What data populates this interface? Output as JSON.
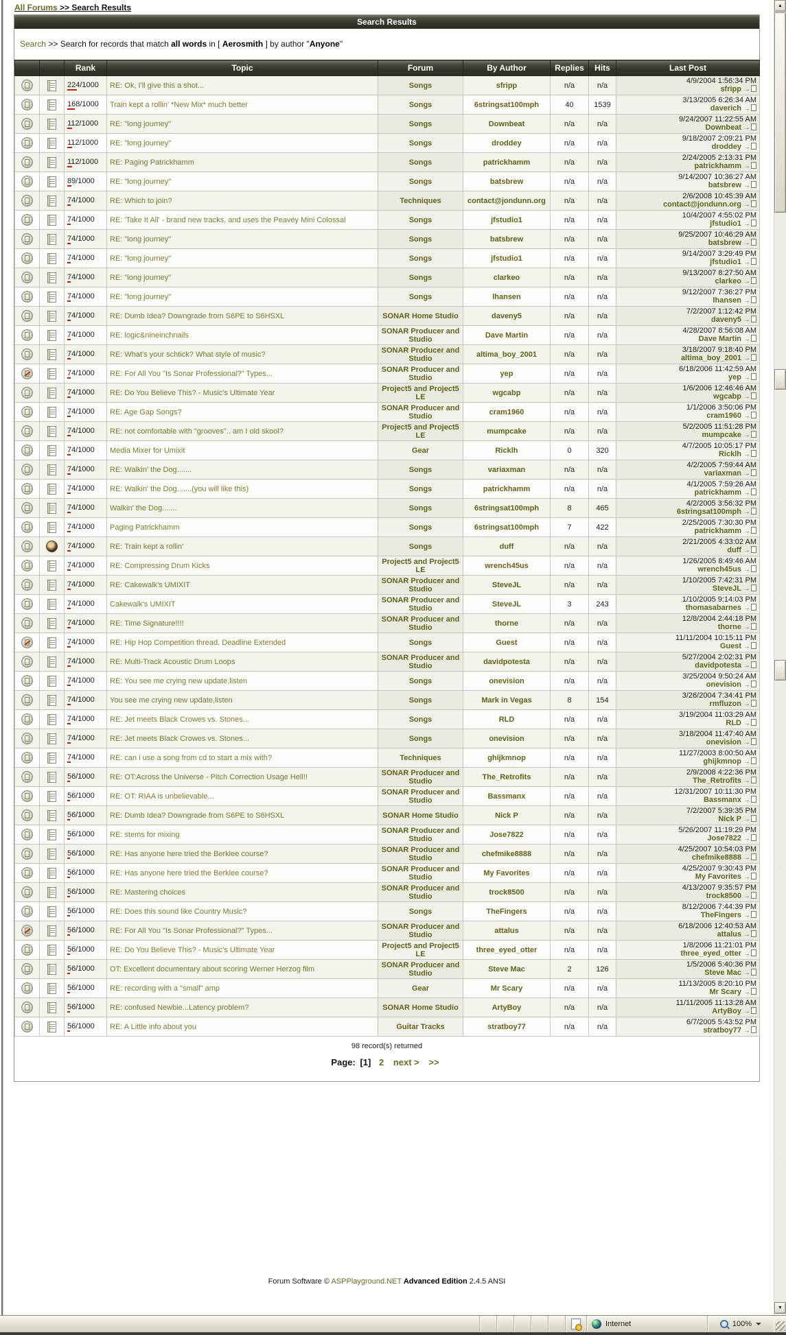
{
  "colors": {
    "accent_olive": "#6b6b21",
    "link_olive": "#7b7b2a",
    "header_bar_bg": "#34342b",
    "rank_bar_red": "#cc1d00",
    "row_alt_bg": "#f3f3ec",
    "status_bar_bg": "#e5e2d4"
  },
  "breadcrumb": {
    "link": "All Forums",
    "rest": " >> Search Results"
  },
  "header": {
    "title": "Search Results"
  },
  "search_summary": {
    "link": "Search",
    "text1": " >> Search for records that match ",
    "bold1": "all words",
    "text2": " in [ ",
    "bold2": "Aerosmith",
    "text3": " ] by author \"",
    "bold3": "Anyone",
    "text4": "\""
  },
  "table": {
    "headers": {
      "rank": "Rank",
      "topic": "Topic",
      "forum": "Forum",
      "by_author": "By Author",
      "replies": "Replies",
      "hits": "Hits",
      "last_post": "Last Post"
    },
    "rows": [
      {
        "icon1": "topic",
        "icon2": "post",
        "rank": "224/1000",
        "topic": "RE: Ok, I'll give this a shot...",
        "forum": "Songs",
        "author": "sfripp",
        "replies": "n/a",
        "hits": "n/a",
        "last_date": "4/9/2004 1:56:34 PM",
        "last_by": "sfripp"
      },
      {
        "icon1": "topic",
        "icon2": "post",
        "rank": "168/1000",
        "topic": "Train kept a rollin' *New Mix* much better",
        "forum": "Songs",
        "author": "6stringsat100mph",
        "replies": "40",
        "hits": "1539",
        "last_date": "3/13/2005 6:26:34 AM",
        "last_by": "daverich"
      },
      {
        "icon1": "topic",
        "icon2": "post",
        "rank": "112/1000",
        "topic": "RE: \"long journey\"",
        "forum": "Songs",
        "author": "Downbeat",
        "replies": "n/a",
        "hits": "n/a",
        "last_date": "9/24/2007 11:22:55 AM",
        "last_by": "Downbeat"
      },
      {
        "icon1": "topic",
        "icon2": "post",
        "rank": "112/1000",
        "topic": "RE: \"long journey\"",
        "forum": "Songs",
        "author": "droddey",
        "replies": "n/a",
        "hits": "n/a",
        "last_date": "9/18/2007 2:09:21 PM",
        "last_by": "droddey"
      },
      {
        "icon1": "topic",
        "icon2": "post",
        "rank": "112/1000",
        "topic": "RE: Paging Patrickhamm",
        "forum": "Songs",
        "author": "patrickhamm",
        "replies": "n/a",
        "hits": "n/a",
        "last_date": "2/24/2005 2:13:31 PM",
        "last_by": "patrickhamm"
      },
      {
        "icon1": "topic",
        "icon2": "post",
        "rank": "89/1000",
        "topic": "RE: \"long journey\"",
        "forum": "Songs",
        "author": "batsbrew",
        "replies": "n/a",
        "hits": "n/a",
        "last_date": "9/14/2007 10:36:27 AM",
        "last_by": "batsbrew"
      },
      {
        "icon1": "topic",
        "icon2": "post",
        "rank": "74/1000",
        "topic": "RE: Which to join?",
        "forum": "Techniques",
        "author": "contact@jondunn.org",
        "replies": "n/a",
        "hits": "n/a",
        "last_date": "2/6/2008 10:45:39 AM",
        "last_by": "contact@jondunn.org"
      },
      {
        "icon1": "topic",
        "icon2": "post",
        "rank": "74/1000",
        "topic": "RE: 'Take It All' - brand new tracks, and uses the Peavey Mini Colossal",
        "forum": "Songs",
        "author": "jfstudio1",
        "replies": "n/a",
        "hits": "n/a",
        "last_date": "10/4/2007 4:55:02 PM",
        "last_by": "jfstudio1"
      },
      {
        "icon1": "topic",
        "icon2": "post",
        "rank": "74/1000",
        "topic": "RE: \"long journey\"",
        "forum": "Songs",
        "author": "batsbrew",
        "replies": "n/a",
        "hits": "n/a",
        "last_date": "9/25/2007 10:46:29 AM",
        "last_by": "batsbrew"
      },
      {
        "icon1": "topic",
        "icon2": "post",
        "rank": "74/1000",
        "topic": "RE: \"long journey\"",
        "forum": "Songs",
        "author": "jfstudio1",
        "replies": "n/a",
        "hits": "n/a",
        "last_date": "9/14/2007 3:29:49 PM",
        "last_by": "jfstudio1"
      },
      {
        "icon1": "topic",
        "icon2": "post",
        "rank": "74/1000",
        "topic": "RE: \"long journey\"",
        "forum": "Songs",
        "author": "clarkeo",
        "replies": "n/a",
        "hits": "n/a",
        "last_date": "9/13/2007 8:27:50 AM",
        "last_by": "clarkeo"
      },
      {
        "icon1": "topic",
        "icon2": "post",
        "rank": "74/1000",
        "topic": "RE: \"long journey\"",
        "forum": "Songs",
        "author": "lhansen",
        "replies": "n/a",
        "hits": "n/a",
        "last_date": "9/12/2007 7:36:27 PM",
        "last_by": "lhansen"
      },
      {
        "icon1": "topic",
        "icon2": "post",
        "rank": "74/1000",
        "topic": "RE: Dumb Idea? Downgrade from S6PE to S6HSXL",
        "forum": "SONAR Home Studio",
        "author": "daveny5",
        "replies": "n/a",
        "hits": "n/a",
        "last_date": "7/2/2007 1:12:42 PM",
        "last_by": "daveny5"
      },
      {
        "icon1": "topic",
        "icon2": "post",
        "rank": "74/1000",
        "topic": "RE: logic&nineinchnails",
        "forum": "SONAR Producer and Studio",
        "author": "Dave Martin",
        "replies": "n/a",
        "hits": "n/a",
        "last_date": "4/28/2007 8:56:08 AM",
        "last_by": "Dave Martin"
      },
      {
        "icon1": "topic",
        "icon2": "post",
        "rank": "74/1000",
        "topic": "RE: What's your schtick? What style of music?",
        "forum": "SONAR Producer and Studio",
        "author": "altima_boy_2001",
        "replies": "n/a",
        "hits": "n/a",
        "last_date": "3/18/2007 9:18:40 PM",
        "last_by": "altima_boy_2001"
      },
      {
        "icon1": "locked",
        "icon2": "post",
        "rank": "74/1000",
        "topic": "RE: For All You \"Is Sonar Professional?\" Types...",
        "forum": "SONAR Producer and Studio",
        "author": "yep",
        "replies": "n/a",
        "hits": "n/a",
        "last_date": "6/18/2006 11:42:59 AM",
        "last_by": "yep"
      },
      {
        "icon1": "topic",
        "icon2": "post",
        "rank": "74/1000",
        "topic": "RE: Do You Believe This? - Music's Ultimate Year",
        "forum": "Project5 and Project5 LE",
        "author": "wgcabp",
        "replies": "n/a",
        "hits": "n/a",
        "last_date": "1/6/2006 12:46:46 AM",
        "last_by": "wgcabp"
      },
      {
        "icon1": "topic",
        "icon2": "post",
        "rank": "74/1000",
        "topic": "RE: Age Gap Songs?",
        "forum": "SONAR Producer and Studio",
        "author": "cram1960",
        "replies": "n/a",
        "hits": "n/a",
        "last_date": "1/1/2006 3:50:06 PM",
        "last_by": "cram1960"
      },
      {
        "icon1": "topic",
        "icon2": "post",
        "rank": "74/1000",
        "topic": "RE: not comfortable with \"grooves\".. am I old skool?",
        "forum": "Project5 and Project5 LE",
        "author": "mumpcake",
        "replies": "n/a",
        "hits": "n/a",
        "last_date": "5/2/2005 11:51:28 PM",
        "last_by": "mumpcake"
      },
      {
        "icon1": "topic",
        "icon2": "post",
        "rank": "74/1000",
        "topic": "Media Mixer for Umixit",
        "forum": "Gear",
        "author": "Ricklh",
        "replies": "0",
        "hits": "320",
        "last_date": "4/7/2005 10:05:17 PM",
        "last_by": "Ricklh"
      },
      {
        "icon1": "topic",
        "icon2": "post",
        "rank": "74/1000",
        "topic": "RE: Walkin' the Dog.......",
        "forum": "Songs",
        "author": "variaxman",
        "replies": "n/a",
        "hits": "n/a",
        "last_date": "4/2/2005 7:59:44 AM",
        "last_by": "variaxman"
      },
      {
        "icon1": "topic",
        "icon2": "post",
        "rank": "74/1000",
        "topic": "RE: Walkin' the Dog.......(you will like this)",
        "forum": "Songs",
        "author": "patrickhamm",
        "replies": "n/a",
        "hits": "n/a",
        "last_date": "4/1/2005 7:59:26 AM",
        "last_by": "patrickhamm"
      },
      {
        "icon1": "topic",
        "icon2": "post",
        "rank": "74/1000",
        "topic": "Walkin' the Dog.......",
        "forum": "Songs",
        "author": "6stringsat100mph",
        "replies": "8",
        "hits": "465",
        "last_date": "4/2/2005 3:56:32 PM",
        "last_by": "6stringsat100mph"
      },
      {
        "icon1": "topic",
        "icon2": "post",
        "rank": "74/1000",
        "topic": "Paging Patrickhamm",
        "forum": "Songs",
        "author": "6stringsat100mph",
        "replies": "7",
        "hits": "422",
        "last_date": "2/25/2005 7:30:30 PM",
        "last_by": "patrickhamm"
      },
      {
        "icon1": "topic",
        "icon2": "smiley",
        "rank": "74/1000",
        "topic": "RE: Train kept a rollin'",
        "forum": "Songs",
        "author": "duff",
        "replies": "n/a",
        "hits": "n/a",
        "last_date": "2/21/2005 4:33:02 AM",
        "last_by": "duff"
      },
      {
        "icon1": "topic",
        "icon2": "post",
        "rank": "74/1000",
        "topic": "RE: Compressing Drum Kicks",
        "forum": "Project5 and Project5 LE",
        "author": "wrench45us",
        "replies": "n/a",
        "hits": "n/a",
        "last_date": "1/26/2005 8:49:46 AM",
        "last_by": "wrench45us"
      },
      {
        "icon1": "topic",
        "icon2": "post",
        "rank": "74/1000",
        "topic": "RE: Cakewalk's UMIXIT",
        "forum": "SONAR Producer and Studio",
        "author": "SteveJL",
        "replies": "n/a",
        "hits": "n/a",
        "last_date": "1/10/2005 7:42:31 PM",
        "last_by": "SteveJL"
      },
      {
        "icon1": "topic",
        "icon2": "post",
        "rank": "74/1000",
        "topic": "Cakewalk's UMIXIT",
        "forum": "SONAR Producer and Studio",
        "author": "SteveJL",
        "replies": "3",
        "hits": "243",
        "last_date": "1/10/2005 9:14:03 PM",
        "last_by": "thomasabarnes"
      },
      {
        "icon1": "topic",
        "icon2": "post",
        "rank": "74/1000",
        "topic": "RE: Time Signature!!!!",
        "forum": "SONAR Producer and Studio",
        "author": "thorne",
        "replies": "n/a",
        "hits": "n/a",
        "last_date": "12/8/2004 2:44:18 PM",
        "last_by": "thorne"
      },
      {
        "icon1": "locked",
        "icon2": "post",
        "rank": "74/1000",
        "topic": "RE: Hip Hop Competition thread. Deadline Extended",
        "forum": "Songs",
        "author": "Guest",
        "replies": "n/a",
        "hits": "n/a",
        "last_date": "11/11/2004 10:15:11 PM",
        "last_by": "Guest"
      },
      {
        "icon1": "topic",
        "icon2": "post",
        "rank": "74/1000",
        "topic": "RE: Multi-Track Acoustic Drum Loops",
        "forum": "SONAR Producer and Studio",
        "author": "davidpotesta",
        "replies": "n/a",
        "hits": "n/a",
        "last_date": "5/27/2004 2:02:31 PM",
        "last_by": "davidpotesta"
      },
      {
        "icon1": "topic",
        "icon2": "post",
        "rank": "74/1000",
        "topic": "RE: You see me crying new update,listen",
        "forum": "Songs",
        "author": "onevision",
        "replies": "n/a",
        "hits": "n/a",
        "last_date": "3/25/2004 9:50:24 AM",
        "last_by": "onevision"
      },
      {
        "icon1": "topic",
        "icon2": "post",
        "rank": "74/1000",
        "topic": "You see me crying new update,listen",
        "forum": "Songs",
        "author": "Mark in Vegas",
        "replies": "8",
        "hits": "154",
        "last_date": "3/26/2004 7:34:41 PM",
        "last_by": "rmfluzon"
      },
      {
        "icon1": "topic",
        "icon2": "post",
        "rank": "74/1000",
        "topic": "RE: Jet meets Black Crowes vs. Stones...",
        "forum": "Songs",
        "author": "RLD",
        "replies": "n/a",
        "hits": "n/a",
        "last_date": "3/19/2004 11:03:29 AM",
        "last_by": "RLD"
      },
      {
        "icon1": "topic",
        "icon2": "post",
        "rank": "74/1000",
        "topic": "RE: Jet meets Black Crowes vs. Stones...",
        "forum": "Songs",
        "author": "onevision",
        "replies": "n/a",
        "hits": "n/a",
        "last_date": "3/18/2004 11:47:40 AM",
        "last_by": "onevision"
      },
      {
        "icon1": "topic",
        "icon2": "post",
        "rank": "74/1000",
        "topic": "RE: can i use a song from cd to start a mix with?",
        "forum": "Techniques",
        "author": "ghijkmnop",
        "replies": "n/a",
        "hits": "n/a",
        "last_date": "11/27/2003 8:00:50 AM",
        "last_by": "ghijkmnop"
      },
      {
        "icon1": "topic",
        "icon2": "post",
        "rank": "56/1000",
        "topic": "RE: OT:Across the Universe - Pitch Correction Usage Hell!!",
        "forum": "SONAR Producer and Studio",
        "author": "The_Retrofits",
        "replies": "n/a",
        "hits": "n/a",
        "last_date": "2/9/2008 4:22:36 PM",
        "last_by": "The_Retrofits"
      },
      {
        "icon1": "topic",
        "icon2": "post",
        "rank": "56/1000",
        "topic": "RE: OT: RIAA is unbelievable...",
        "forum": "SONAR Producer and Studio",
        "author": "Bassmanx",
        "replies": "n/a",
        "hits": "n/a",
        "last_date": "12/31/2007 10:11:30 PM",
        "last_by": "Bassmanx"
      },
      {
        "icon1": "topic",
        "icon2": "post",
        "rank": "56/1000",
        "topic": "RE: Dumb Idea? Downgrade from S6PE to S6HSXL",
        "forum": "SONAR Home Studio",
        "author": "Nick P",
        "replies": "n/a",
        "hits": "n/a",
        "last_date": "7/2/2007 5:39:35 PM",
        "last_by": "Nick P"
      },
      {
        "icon1": "topic",
        "icon2": "post",
        "rank": "56/1000",
        "topic": "RE: stems for mixing",
        "forum": "SONAR Producer and Studio",
        "author": "Jose7822",
        "replies": "n/a",
        "hits": "n/a",
        "last_date": "5/26/2007 11:19:29 PM",
        "last_by": "Jose7822"
      },
      {
        "icon1": "topic",
        "icon2": "post",
        "rank": "56/1000",
        "topic": "RE: Has anyone here tried the Berklee course?",
        "forum": "SONAR Producer and Studio",
        "author": "chefmike8888",
        "replies": "n/a",
        "hits": "n/a",
        "last_date": "4/25/2007 10:54:03 PM",
        "last_by": "chefmike8888"
      },
      {
        "icon1": "topic",
        "icon2": "post",
        "rank": "56/1000",
        "topic": "RE: Has anyone here tried the Berklee course?",
        "forum": "SONAR Producer and Studio",
        "author": "My Favorites",
        "replies": "n/a",
        "hits": "n/a",
        "last_date": "4/25/2007 9:30:43 PM",
        "last_by": "My Favorites"
      },
      {
        "icon1": "topic",
        "icon2": "post",
        "rank": "56/1000",
        "topic": "RE: Mastering choices",
        "forum": "SONAR Producer and Studio",
        "author": "trock8500",
        "replies": "n/a",
        "hits": "n/a",
        "last_date": "4/13/2007 9:35:57 PM",
        "last_by": "trock8500"
      },
      {
        "icon1": "topic",
        "icon2": "post",
        "rank": "56/1000",
        "topic": "RE: Does this sound like Country Music?",
        "forum": "Songs",
        "author": "TheFingers",
        "replies": "n/a",
        "hits": "n/a",
        "last_date": "8/12/2006 7:44:39 PM",
        "last_by": "TheFingers"
      },
      {
        "icon1": "locked",
        "icon2": "post",
        "rank": "56/1000",
        "topic": "RE: For All You \"Is Sonar Professional?\" Types...",
        "forum": "SONAR Producer and Studio",
        "author": "attalus",
        "replies": "n/a",
        "hits": "n/a",
        "last_date": "6/18/2006 12:40:53 AM",
        "last_by": "attalus"
      },
      {
        "icon1": "topic",
        "icon2": "post",
        "rank": "56/1000",
        "topic": "RE: Do You Believe This? - Music's Ultimate Year",
        "forum": "Project5 and Project5 LE",
        "author": "three_eyed_otter",
        "replies": "n/a",
        "hits": "n/a",
        "last_date": "1/8/2006 11:21:01 PM",
        "last_by": "three_eyed_otter"
      },
      {
        "icon1": "topic",
        "icon2": "post",
        "rank": "56/1000",
        "topic": "OT: Excellent documentary about scoring Werner Herzog film",
        "forum": "SONAR Producer and Studio",
        "author": "Steve Mac",
        "replies": "2",
        "hits": "126",
        "last_date": "1/5/2006 5:40:36 PM",
        "last_by": "Steve Mac"
      },
      {
        "icon1": "topic",
        "icon2": "post",
        "rank": "56/1000",
        "topic": "RE: recording with a \"small\" amp",
        "forum": "Gear",
        "author": "Mr Scary",
        "replies": "n/a",
        "hits": "n/a",
        "last_date": "11/13/2005 8:20:10 PM",
        "last_by": "Mr Scary"
      },
      {
        "icon1": "topic",
        "icon2": "post",
        "rank": "56/1000",
        "topic": "RE: confused Newbie...Latency problem?",
        "forum": "SONAR Home Studio",
        "author": "ArtyBoy",
        "replies": "n/a",
        "hits": "n/a",
        "last_date": "11/11/2005 11:13:28 AM",
        "last_by": "ArtyBoy"
      },
      {
        "icon1": "topic",
        "icon2": "post",
        "rank": "56/1000",
        "topic": "RE: A Little info about you",
        "forum": "Guitar Tracks",
        "author": "stratboy77",
        "replies": "n/a",
        "hits": "n/a",
        "last_date": "6/7/2005 5:43:52 PM",
        "last_by": "stratboy77"
      }
    ]
  },
  "results": {
    "count_text": "98 record(s) returned"
  },
  "pagination": {
    "label": "Page:",
    "current": "[1]",
    "page2": "2",
    "next": "next >",
    "last": ">>"
  },
  "footer": {
    "prefix": "Forum Software © ",
    "link": "ASPPlayground.NET",
    "edition": " Advanced Edition",
    "version": " 2.4.5 ANSI"
  },
  "status_bar": {
    "zone_label": "Internet",
    "zoom_level": "100%"
  },
  "icons": {
    "topic": "circle-page-icon",
    "locked": "circle-locked-icon",
    "post": "post-list-icon",
    "smiley": "smiley-icon",
    "goto": "goto-last-post-icon",
    "globe": "globe-icon",
    "doc_alert": "page-alert-icon",
    "magnifier": "zoom-magnifier-icon"
  }
}
